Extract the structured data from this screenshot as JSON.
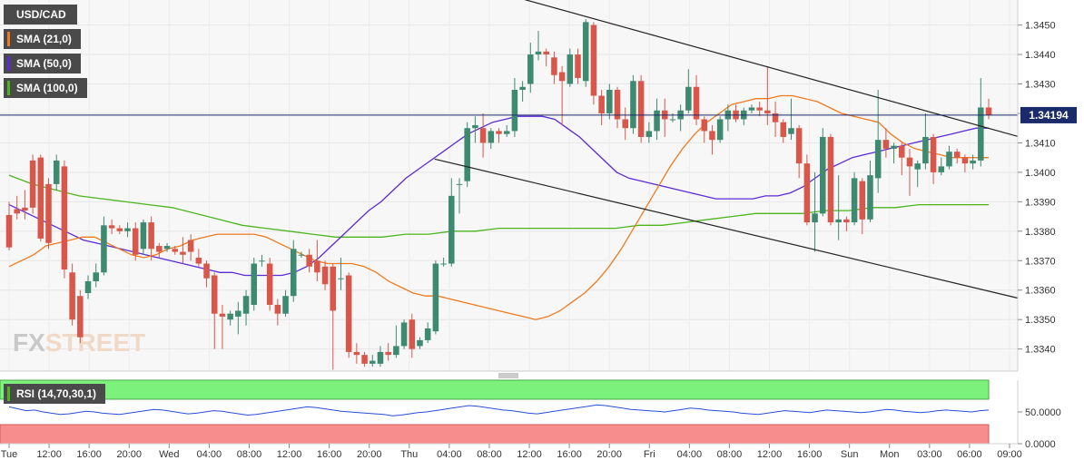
{
  "chart_data": {
    "type": "candlestick",
    "symbol": "USD/CAD",
    "current_price": "1.34194",
    "y_ticks": [
      "1.3450",
      "1.3440",
      "1.3430",
      "1.3420",
      "1.3410",
      "1.3400",
      "1.3390",
      "1.3380",
      "1.3370",
      "1.3360",
      "1.3350",
      "1.3340"
    ],
    "ylim": [
      1.33325,
      1.34585
    ],
    "x_ticks": [
      "Tue",
      "12:00",
      "16:00",
      "20:00",
      "Wed",
      "04:00",
      "08:00",
      "12:00",
      "16:00",
      "20:00",
      "Thu",
      "04:00",
      "08:00",
      "12:00",
      "16:00",
      "20:00",
      "Fri",
      "04:00",
      "08:00",
      "12:00",
      "16:00",
      "Sun",
      "Mon",
      "03:00",
      "06:00",
      "09:00"
    ],
    "legend": [
      {
        "label": "USD/CAD",
        "color": "#4a4a4a"
      },
      {
        "label": "SMA (21,0)",
        "color": "#f07a1e"
      },
      {
        "label": "SMA (50,0)",
        "color": "#5a2bd6"
      },
      {
        "label": "SMA (100,0)",
        "color": "#4cb51e"
      }
    ],
    "colors": {
      "up": "#3d8a70",
      "down": "#d9574a",
      "trendline": "#222222",
      "price_line": "#1a2a6a"
    },
    "candles": [
      [
        1.33855,
        1.33745,
        1.339,
        1.33735
      ],
      [
        1.33875,
        1.3386,
        1.3392,
        1.3384
      ],
      [
        1.3388,
        1.3387,
        1.3394,
        1.3384
      ],
      [
        1.3404,
        1.3388,
        1.3406,
        1.3386
      ],
      [
        1.3405,
        1.33775,
        1.3406,
        1.33765
      ],
      [
        1.3396,
        1.3376,
        1.3398,
        1.3374
      ],
      [
        1.3396,
        1.3404,
        1.3406,
        1.3394
      ],
      [
        1.3402,
        1.3367,
        1.3404,
        1.3364
      ],
      [
        1.3366,
        1.335,
        1.3369,
        1.3348
      ],
      [
        1.3358,
        1.3344,
        1.336,
        1.3342
      ],
      [
        1.3359,
        1.3363,
        1.3365,
        1.3357
      ],
      [
        1.3363,
        1.3366,
        1.3369,
        1.3361
      ],
      [
        1.3366,
        1.3382,
        1.3385,
        1.3365
      ],
      [
        1.3382,
        1.3381,
        1.3384,
        1.3379
      ],
      [
        1.3381,
        1.338,
        1.3382,
        1.3379
      ],
      [
        1.338,
        1.3381,
        1.3383,
        1.3378
      ],
      [
        1.3381,
        1.3372,
        1.3383,
        1.337
      ],
      [
        1.3374,
        1.3383,
        1.3384,
        1.3372
      ],
      [
        1.3383,
        1.3374,
        1.3385,
        1.337
      ],
      [
        1.3375,
        1.3373,
        1.3376,
        1.3371
      ],
      [
        1.3374,
        1.3375,
        1.3376,
        1.3373
      ],
      [
        1.3374,
        1.3373,
        1.3375,
        1.3372
      ],
      [
        1.3373,
        1.3372,
        1.3378,
        1.3369
      ],
      [
        1.3377,
        1.3373,
        1.3379,
        1.337
      ],
      [
        1.3371,
        1.3369,
        1.3374,
        1.3368
      ],
      [
        1.3369,
        1.3364,
        1.337,
        1.3361
      ],
      [
        1.3365,
        1.3352,
        1.3366,
        1.334
      ],
      [
        1.3352,
        1.3351,
        1.3355,
        1.334
      ],
      [
        1.335,
        1.3352,
        1.3353,
        1.3348
      ],
      [
        1.3351,
        1.3353,
        1.3356,
        1.3345
      ],
      [
        1.3352,
        1.3358,
        1.336,
        1.3348
      ],
      [
        1.3355,
        1.3369,
        1.3371,
        1.3353
      ],
      [
        1.337,
        1.337,
        1.3372,
        1.3368
      ],
      [
        1.3369,
        1.3355,
        1.3371,
        1.3353
      ],
      [
        1.3355,
        1.3352,
        1.3357,
        1.3348
      ],
      [
        1.3352,
        1.3358,
        1.336,
        1.3351
      ],
      [
        1.3358,
        1.3374,
        1.3377,
        1.3356
      ],
      [
        1.3372,
        1.3372,
        1.3373,
        1.3371
      ],
      [
        1.3372,
        1.3368,
        1.3374,
        1.3366
      ],
      [
        1.337,
        1.3366,
        1.3377,
        1.3363
      ],
      [
        1.3368,
        1.3362,
        1.337,
        1.336
      ],
      [
        1.3368,
        1.3353,
        1.3369,
        1.3333
      ],
      [
        1.3364,
        1.3364,
        1.3371,
        1.336
      ],
      [
        1.3365,
        1.3339,
        1.3366,
        1.3337
      ],
      [
        1.3339,
        1.3338,
        1.3342,
        1.3335
      ],
      [
        1.3338,
        1.3335,
        1.3339,
        1.3334
      ],
      [
        1.3335,
        1.3336,
        1.3338,
        1.3334
      ],
      [
        1.3335,
        1.3339,
        1.3341,
        1.3334
      ],
      [
        1.3339,
        1.3338,
        1.3342,
        1.3336
      ],
      [
        1.3338,
        1.3341,
        1.3348,
        1.3337
      ],
      [
        1.3341,
        1.3349,
        1.335,
        1.334
      ],
      [
        1.335,
        1.334,
        1.3352,
        1.3337
      ],
      [
        1.3341,
        1.3343,
        1.3344,
        1.334
      ],
      [
        1.3343,
        1.3347,
        1.3349,
        1.3342
      ],
      [
        1.3346,
        1.3369,
        1.337,
        1.3345
      ],
      [
        1.3369,
        1.3369,
        1.3371,
        1.3368
      ],
      [
        1.3369,
        1.3392,
        1.3398,
        1.3368
      ],
      [
        1.3396,
        1.3396,
        1.3398,
        1.3386
      ],
      [
        1.3397,
        1.3415,
        1.3417,
        1.3395
      ],
      [
        1.3415,
        1.3416,
        1.3419,
        1.341
      ],
      [
        1.3415,
        1.341,
        1.342,
        1.3405
      ],
      [
        1.341,
        1.3414,
        1.3415,
        1.3408
      ],
      [
        1.3414,
        1.3413,
        1.3415,
        1.341
      ],
      [
        1.3413,
        1.3414,
        1.3416,
        1.3412
      ],
      [
        1.3414,
        1.3428,
        1.3432,
        1.3412
      ],
      [
        1.3428,
        1.3429,
        1.3431,
        1.3424
      ],
      [
        1.343,
        1.344,
        1.3444,
        1.3427
      ],
      [
        1.344,
        1.3441,
        1.3448,
        1.3438
      ],
      [
        1.3441,
        1.344,
        1.3442,
        1.3436
      ],
      [
        1.3439,
        1.3433,
        1.3441,
        1.343
      ],
      [
        1.3434,
        1.3431,
        1.3436,
        1.3416
      ],
      [
        1.343,
        1.344,
        1.3442,
        1.3429
      ],
      [
        1.344,
        1.3432,
        1.3442,
        1.343
      ],
      [
        1.3431,
        1.3451,
        1.3452,
        1.3429
      ],
      [
        1.345,
        1.3426,
        1.3451,
        1.3423
      ],
      [
        1.3426,
        1.342,
        1.3428,
        1.3416
      ],
      [
        1.342,
        1.3428,
        1.343,
        1.3418
      ],
      [
        1.3428,
        1.3418,
        1.3429,
        1.3415
      ],
      [
        1.3418,
        1.3415,
        1.3422,
        1.3411
      ],
      [
        1.3415,
        1.3431,
        1.3433,
        1.3413
      ],
      [
        1.3431,
        1.3412,
        1.3433,
        1.341
      ],
      [
        1.3412,
        1.3414,
        1.3417,
        1.341
      ],
      [
        1.3414,
        1.3421,
        1.3425,
        1.3411
      ],
      [
        1.3421,
        1.3418,
        1.3425,
        1.3412
      ],
      [
        1.3418,
        1.3418,
        1.342,
        1.3417
      ],
      [
        1.3418,
        1.3421,
        1.3423,
        1.3414
      ],
      [
        1.3421,
        1.3429,
        1.3435,
        1.342
      ],
      [
        1.3429,
        1.3418,
        1.3433,
        1.3416
      ],
      [
        1.3418,
        1.3414,
        1.3419,
        1.341
      ],
      [
        1.3414,
        1.3411,
        1.3416,
        1.3406
      ],
      [
        1.3411,
        1.3418,
        1.3419,
        1.341
      ],
      [
        1.3418,
        1.3421,
        1.3423,
        1.3414
      ],
      [
        1.3421,
        1.3418,
        1.3423,
        1.3417
      ],
      [
        1.3418,
        1.3421,
        1.3422,
        1.3416
      ],
      [
        1.3421,
        1.3422,
        1.3423,
        1.342
      ],
      [
        1.3422,
        1.3421,
        1.3424,
        1.3419
      ],
      [
        1.3421,
        1.342,
        1.3436,
        1.3416
      ],
      [
        1.342,
        1.3417,
        1.3424,
        1.3412
      ],
      [
        1.3417,
        1.3412,
        1.3418,
        1.341
      ],
      [
        1.3413,
        1.3415,
        1.3425,
        1.3411
      ],
      [
        1.3415,
        1.3403,
        1.3416,
        1.3398
      ],
      [
        1.3403,
        1.3383,
        1.3406,
        1.3382
      ],
      [
        1.3383,
        1.3386,
        1.34,
        1.3373
      ],
      [
        1.3386,
        1.3412,
        1.3415,
        1.3385
      ],
      [
        1.3412,
        1.3383,
        1.3413,
        1.3382
      ],
      [
        1.3383,
        1.3384,
        1.3399,
        1.3377
      ],
      [
        1.3384,
        1.3383,
        1.3385,
        1.338
      ],
      [
        1.3383,
        1.3398,
        1.34,
        1.3382
      ],
      [
        1.3397,
        1.3384,
        1.3398,
        1.3379
      ],
      [
        1.3384,
        1.3399,
        1.3404,
        1.3383
      ],
      [
        1.3398,
        1.3411,
        1.3428,
        1.3393
      ],
      [
        1.3411,
        1.3408,
        1.3415,
        1.3405
      ],
      [
        1.3408,
        1.3409,
        1.341,
        1.3403
      ],
      [
        1.3409,
        1.3405,
        1.341,
        1.3399
      ],
      [
        1.3405,
        1.3402,
        1.3408,
        1.3392
      ],
      [
        1.3401,
        1.3403,
        1.3404,
        1.3395
      ],
      [
        1.3403,
        1.3412,
        1.342,
        1.3401
      ],
      [
        1.3412,
        1.34,
        1.3413,
        1.3396
      ],
      [
        1.34,
        1.3402,
        1.3405,
        1.3399
      ],
      [
        1.3402,
        1.3407,
        1.3409,
        1.3401
      ],
      [
        1.3407,
        1.3405,
        1.3408,
        1.3403
      ],
      [
        1.3405,
        1.3403,
        1.3406,
        1.34
      ],
      [
        1.3403,
        1.3404,
        1.3406,
        1.3401
      ],
      [
        1.3404,
        1.3422,
        1.3432,
        1.3402
      ],
      [
        1.3422,
        1.34194,
        1.3425,
        1.3418
      ]
    ],
    "sma21": [
      1.3368,
      1.337,
      1.3372,
      1.3375,
      1.3376,
      1.3377,
      1.3378,
      1.3378,
      1.3376,
      1.3374,
      1.3372,
      1.3371,
      1.3372,
      1.3374,
      1.3375,
      1.3377,
      1.3378,
      1.3379,
      1.3379,
      1.3379,
      1.3379,
      1.3378,
      1.3376,
      1.3374,
      1.3372,
      1.337,
      1.3369,
      1.3369,
      1.3369,
      1.3368,
      1.3366,
      1.3363,
      1.3361,
      1.3359,
      1.3358,
      1.3358,
      1.3357,
      1.3356,
      1.3355,
      1.3354,
      1.3353,
      1.3352,
      1.3351,
      1.335,
      1.3351,
      1.3353,
      1.3356,
      1.3359,
      1.3363,
      1.3368,
      1.3374,
      1.3381,
      1.3388,
      1.3395,
      1.3402,
      1.3408,
      1.3413,
      1.3417,
      1.342,
      1.3423,
      1.3424,
      1.3425,
      1.3425,
      1.3426,
      1.3426,
      1.3425,
      1.3424,
      1.3422,
      1.342,
      1.3419,
      1.3418,
      1.3417,
      1.3413,
      1.341,
      1.3408,
      1.3407,
      1.3406,
      1.3405,
      1.3405,
      1.3405,
      1.3405
    ],
    "sma50": [
      1.3389,
      1.3387,
      1.3385,
      1.3383,
      1.3381,
      1.3379,
      1.3377,
      1.3376,
      1.3375,
      1.3374,
      1.3373,
      1.3372,
      1.3371,
      1.337,
      1.3369,
      1.3368,
      1.3367,
      1.3366,
      1.3366,
      1.3365,
      1.3365,
      1.3365,
      1.3365,
      1.3366,
      1.3368,
      1.3371,
      1.3375,
      1.3379,
      1.3383,
      1.3387,
      1.339,
      1.3394,
      1.3398,
      1.3401,
      1.3404,
      1.3407,
      1.341,
      1.3413,
      1.3415,
      1.3417,
      1.3418,
      1.3419,
      1.3419,
      1.3419,
      1.3418,
      1.3415,
      1.3412,
      1.3408,
      1.3404,
      1.34,
      1.3398,
      1.3397,
      1.3396,
      1.3395,
      1.3394,
      1.3393,
      1.3392,
      1.3391,
      1.3391,
      1.3391,
      1.3391,
      1.3392,
      1.3392,
      1.3393,
      1.3395,
      1.3398,
      1.3401,
      1.3403,
      1.3405,
      1.3406,
      1.3407,
      1.3408,
      1.3409,
      1.341,
      1.3411,
      1.3412,
      1.3413,
      1.3414,
      1.3415,
      1.3415
    ],
    "sma100": [
      1.3399,
      1.3396,
      1.3394,
      1.3392,
      1.3391,
      1.339,
      1.3389,
      1.3388,
      1.3386,
      1.3384,
      1.3382,
      1.3381,
      1.338,
      1.3379,
      1.3378,
      1.3378,
      1.3378,
      1.3379,
      1.3379,
      1.338,
      1.338,
      1.3381,
      1.3381,
      1.3381,
      1.3381,
      1.3381,
      1.3381,
      1.3382,
      1.3382,
      1.3383,
      1.3384,
      1.3385,
      1.3386,
      1.3386,
      1.3386,
      1.3387,
      1.3387,
      1.3388,
      1.3388,
      1.3389,
      1.3389,
      1.3389,
      1.3389
    ],
    "trendlines": [
      {
        "from": [
          0.5107,
          1.34591
        ],
        "to": [
          1.0,
          1.34122
        ]
      },
      {
        "from": [
          0.427,
          1.34045
        ],
        "to": [
          1.0,
          1.33573
        ]
      }
    ],
    "rsi": {
      "label": "RSI (14,70,30,1)",
      "ticks": [
        "50.0000",
        "0.0000"
      ],
      "ylim": [
        0,
        100
      ],
      "overbought": 70,
      "oversold": 30,
      "values": [
        58,
        55,
        52,
        53,
        50,
        48,
        46,
        47,
        49,
        51,
        50,
        48,
        47,
        46,
        48,
        50,
        52,
        54,
        53,
        51,
        49,
        47,
        48,
        50,
        52,
        51,
        49,
        47,
        45,
        46,
        48,
        50,
        52,
        54,
        56,
        58,
        57,
        55,
        53,
        51,
        50,
        49,
        48,
        47,
        46,
        44,
        45,
        47,
        49,
        50,
        52,
        54,
        56,
        58,
        60,
        59,
        57,
        55,
        53,
        52,
        50,
        48,
        47,
        49,
        51,
        53,
        55,
        57,
        59,
        61,
        60,
        58,
        56,
        54,
        53,
        52,
        51,
        50,
        52,
        54,
        56,
        55,
        53,
        52,
        51,
        50,
        48,
        47,
        46,
        48,
        50,
        52,
        51,
        50,
        49,
        51,
        53,
        52,
        51,
        50,
        49,
        50,
        52,
        54,
        53,
        51,
        50,
        49,
        50,
        52,
        53,
        52,
        51,
        50,
        52,
        53
      ]
    },
    "watermark": "FXSTREET"
  }
}
